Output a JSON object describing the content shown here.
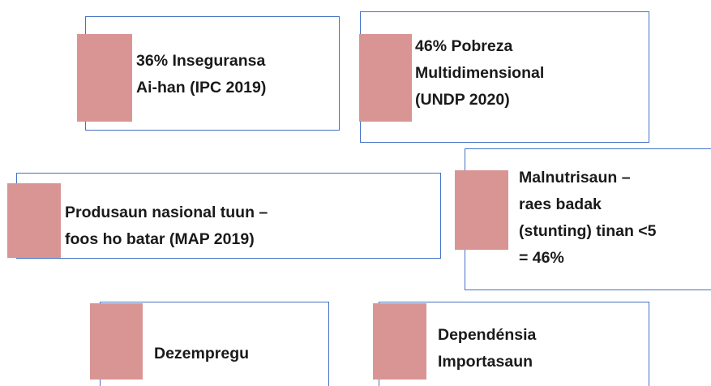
{
  "items": [
    {
      "lines": [
        "36% Inseguransa",
        "Ai-han (IPC 2019)"
      ]
    },
    {
      "lines": [
        "46% Pobreza",
        "Multidimensional",
        "(UNDP 2020)"
      ]
    },
    {
      "lines": [
        "Produsaun nasional tuun –",
        "foos ho batar (MAP 2019)"
      ]
    },
    {
      "lines": [
        "Malnutrisaun –",
        "raes badak",
        "(stunting) tinan <5",
        "= 46%"
      ]
    },
    {
      "lines": [
        "Dezempregu"
      ]
    },
    {
      "lines": [
        "Dependénsia",
        "Importasaun"
      ]
    }
  ]
}
